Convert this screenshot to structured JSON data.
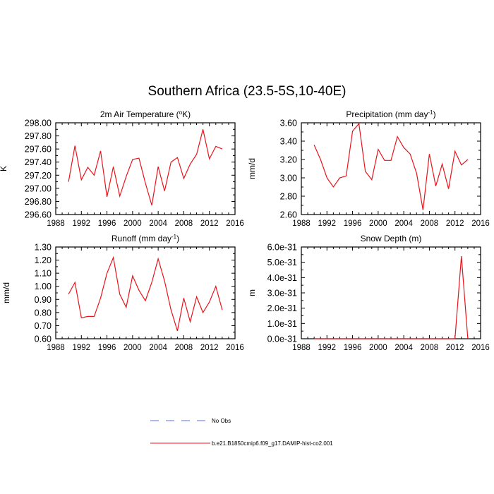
{
  "figure_title": "Southern Africa (23.5-5S,10-40E)",
  "colors": {
    "model": "#e8141b",
    "obs": "#5a6cf0",
    "axis": "#000000"
  },
  "legend": {
    "items": [
      {
        "label": "No Obs",
        "style": "dashed",
        "color": "#5a6cf0"
      },
      {
        "label": "b.e21.B1850cmip6.f09_g17.DAMIP-hist-co2.001",
        "style": "solid",
        "color": "#e8141b"
      }
    ]
  },
  "chart_data": [
    {
      "type": "line",
      "title": "2m Air Temperature (°K)",
      "title_parts": {
        "pre": "2m Air Temperature (",
        "sup": "o",
        "post": "K)"
      },
      "ylabel": "K",
      "xlim": [
        1988,
        2016
      ],
      "ylim": [
        296.6,
        298.0
      ],
      "x_ticks": [
        1988,
        1992,
        1996,
        2000,
        2004,
        2008,
        2012,
        2016
      ],
      "y_ticks": [
        "296.60",
        "296.80",
        "297.00",
        "297.20",
        "297.40",
        "297.60",
        "297.80",
        "298.00"
      ],
      "x": [
        1990,
        1991,
        1992,
        1993,
        1994,
        1995,
        1996,
        1997,
        1998,
        1999,
        2000,
        2001,
        2002,
        2003,
        2004,
        2005,
        2006,
        2007,
        2008,
        2009,
        2010,
        2011,
        2012,
        2013,
        2014
      ],
      "series": [
        {
          "name": "b.e21.B1850cmip6.f09_g17.DAMIP-hist-co2.001",
          "values": [
            297.1,
            297.65,
            297.13,
            297.32,
            297.2,
            297.57,
            296.87,
            297.33,
            296.88,
            297.18,
            297.44,
            297.46,
            297.08,
            296.74,
            297.33,
            296.96,
            297.4,
            297.47,
            297.15,
            297.37,
            297.52,
            297.9,
            297.45,
            297.64,
            297.6
          ]
        }
      ]
    },
    {
      "type": "line",
      "title": "Precipitation (mm day-1)",
      "title_parts": {
        "pre": "Precipitation (mm day",
        "sup": "-1",
        "post": ")"
      },
      "ylabel": "mm/d",
      "xlim": [
        1988,
        2016
      ],
      "ylim": [
        2.6,
        3.6
      ],
      "x_ticks": [
        1988,
        1992,
        1996,
        2000,
        2004,
        2008,
        2012,
        2016
      ],
      "y_ticks": [
        "2.60",
        "2.80",
        "3.00",
        "3.20",
        "3.40",
        "3.60"
      ],
      "x": [
        1990,
        1991,
        1992,
        1993,
        1994,
        1995,
        1996,
        1997,
        1998,
        1999,
        2000,
        2001,
        2002,
        2003,
        2004,
        2005,
        2006,
        2007,
        2008,
        2009,
        2010,
        2011,
        2012,
        2013,
        2014
      ],
      "series": [
        {
          "name": "b.e21.B1850cmip6.f09_g17.DAMIP-hist-co2.001",
          "values": [
            3.36,
            3.2,
            3.0,
            2.9,
            3.0,
            3.02,
            3.51,
            3.59,
            3.07,
            2.98,
            3.31,
            3.19,
            3.19,
            3.45,
            3.33,
            3.26,
            3.05,
            2.65,
            3.26,
            2.91,
            3.15,
            2.88,
            3.29,
            3.14,
            3.2
          ]
        }
      ]
    },
    {
      "type": "line",
      "title": "Runoff (mm day-1)",
      "title_parts": {
        "pre": "Runoff (mm day",
        "sup": "-1",
        "post": ")"
      },
      "ylabel": "mm/d",
      "xlim": [
        1988,
        2016
      ],
      "ylim": [
        0.6,
        1.3
      ],
      "x_ticks": [
        1988,
        1992,
        1996,
        2000,
        2004,
        2008,
        2012,
        2016
      ],
      "y_ticks": [
        "0.60",
        "0.70",
        "0.80",
        "0.90",
        "1.00",
        "1.10",
        "1.20",
        "1.30"
      ],
      "x": [
        1990,
        1991,
        1992,
        1993,
        1994,
        1995,
        1996,
        1997,
        1998,
        1999,
        2000,
        2001,
        2002,
        2003,
        2004,
        2005,
        2006,
        2007,
        2008,
        2009,
        2010,
        2011,
        2012,
        2013,
        2014
      ],
      "series": [
        {
          "name": "b.e21.B1850cmip6.f09_g17.DAMIP-hist-co2.001",
          "values": [
            0.94,
            1.03,
            0.76,
            0.77,
            0.77,
            0.91,
            1.1,
            1.22,
            0.94,
            0.84,
            1.08,
            0.97,
            0.89,
            1.03,
            1.21,
            1.04,
            0.82,
            0.66,
            0.91,
            0.73,
            0.92,
            0.8,
            0.88,
            1.0,
            0.82
          ]
        }
      ]
    },
    {
      "type": "line",
      "title": "Snow Depth (m)",
      "title_parts": {
        "pre": "Snow Depth (m)",
        "sup": "",
        "post": ""
      },
      "ylabel": "m",
      "xlim": [
        1988,
        2016
      ],
      "ylim": [
        0.0,
        6e-31
      ],
      "x_ticks": [
        1988,
        1992,
        1996,
        2000,
        2004,
        2008,
        2012,
        2016
      ],
      "y_ticks": [
        "0.0e-31",
        "1.0e-31",
        "2.0e-31",
        "3.0e-31",
        "4.0e-31",
        "5.0e-31",
        "6.0e-31"
      ],
      "x": [
        1990,
        1991,
        1992,
        1993,
        1994,
        1995,
        1996,
        1997,
        1998,
        1999,
        2000,
        2001,
        2002,
        2003,
        2004,
        2005,
        2006,
        2007,
        2008,
        2009,
        2010,
        2011,
        2012,
        2013,
        2014
      ],
      "series": [
        {
          "name": "b.e21.B1850cmip6.f09_g17.DAMIP-hist-co2.001",
          "values": [
            0,
            0,
            0,
            0,
            0,
            0,
            0,
            0,
            0,
            0,
            0,
            0,
            0,
            0,
            0,
            0,
            0,
            0,
            0,
            0,
            0,
            0,
            0,
            5.4e-31,
            0
          ]
        }
      ]
    }
  ]
}
